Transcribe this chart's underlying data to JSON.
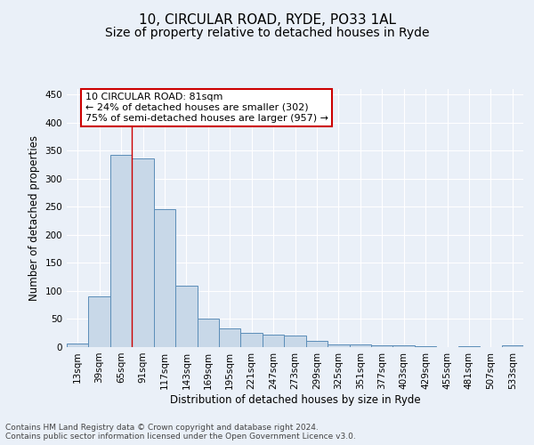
{
  "title1": "10, CIRCULAR ROAD, RYDE, PO33 1AL",
  "title2": "Size of property relative to detached houses in Ryde",
  "xlabel": "Distribution of detached houses by size in Ryde",
  "ylabel": "Number of detached properties",
  "footer": "Contains HM Land Registry data © Crown copyright and database right 2024.\nContains public sector information licensed under the Open Government Licence v3.0.",
  "bin_labels": [
    "13sqm",
    "39sqm",
    "65sqm",
    "91sqm",
    "117sqm",
    "143sqm",
    "169sqm",
    "195sqm",
    "221sqm",
    "247sqm",
    "273sqm",
    "299sqm",
    "325sqm",
    "351sqm",
    "377sqm",
    "403sqm",
    "429sqm",
    "455sqm",
    "481sqm",
    "507sqm",
    "533sqm"
  ],
  "bar_values": [
    7,
    90,
    342,
    336,
    246,
    110,
    50,
    33,
    25,
    22,
    21,
    11,
    5,
    5,
    3,
    3,
    2,
    0,
    1,
    0,
    3
  ],
  "bar_color": "#c8d8e8",
  "bar_edge_color": "#5b8db8",
  "property_line_bin_index": 2.5,
  "annotation_text": "10 CIRCULAR ROAD: 81sqm\n← 24% of detached houses are smaller (302)\n75% of semi-detached houses are larger (957) →",
  "annotation_box_color": "#ffffff",
  "annotation_box_edge_color": "#cc0000",
  "vline_color": "#cc0000",
  "ylim": [
    0,
    460
  ],
  "yticks": [
    0,
    50,
    100,
    150,
    200,
    250,
    300,
    350,
    400,
    450
  ],
  "bg_color": "#eaf0f8",
  "plot_bg_color": "#eaf0f8",
  "grid_color": "#ffffff",
  "title1_fontsize": 11,
  "title2_fontsize": 10,
  "axis_label_fontsize": 8.5,
  "tick_fontsize": 7.5,
  "footer_fontsize": 6.5
}
